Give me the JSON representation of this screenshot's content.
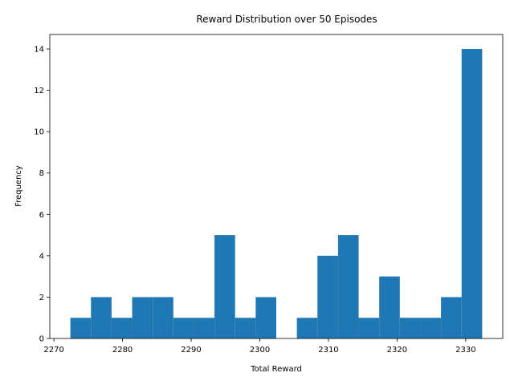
{
  "chart_data": {
    "type": "bar",
    "title": "Reward Distribution over 50 Episodes",
    "xlabel": "Total Reward",
    "ylabel": "Frequency",
    "bin_edges": [
      2272.4,
      2275.4,
      2278.4,
      2281.4,
      2284.4,
      2287.4,
      2290.4,
      2293.4,
      2296.4,
      2299.4,
      2302.4,
      2305.4,
      2308.4,
      2311.4,
      2314.4,
      2317.4,
      2320.4,
      2323.4,
      2326.4,
      2329.4,
      2332.4
    ],
    "counts": [
      1,
      2,
      1,
      2,
      2,
      1,
      1,
      5,
      1,
      2,
      0,
      1,
      4,
      5,
      1,
      3,
      1,
      1,
      2,
      14
    ],
    "xlim": [
      2269.4,
      2335.4
    ],
    "ylim": [
      0,
      14.7
    ],
    "xticks": [
      2270,
      2280,
      2290,
      2300,
      2310,
      2320,
      2330
    ],
    "yticks": [
      0,
      2,
      4,
      6,
      8,
      10,
      12,
      14
    ],
    "bar_color": "#1f77b4",
    "grid": false,
    "legend": "none"
  }
}
